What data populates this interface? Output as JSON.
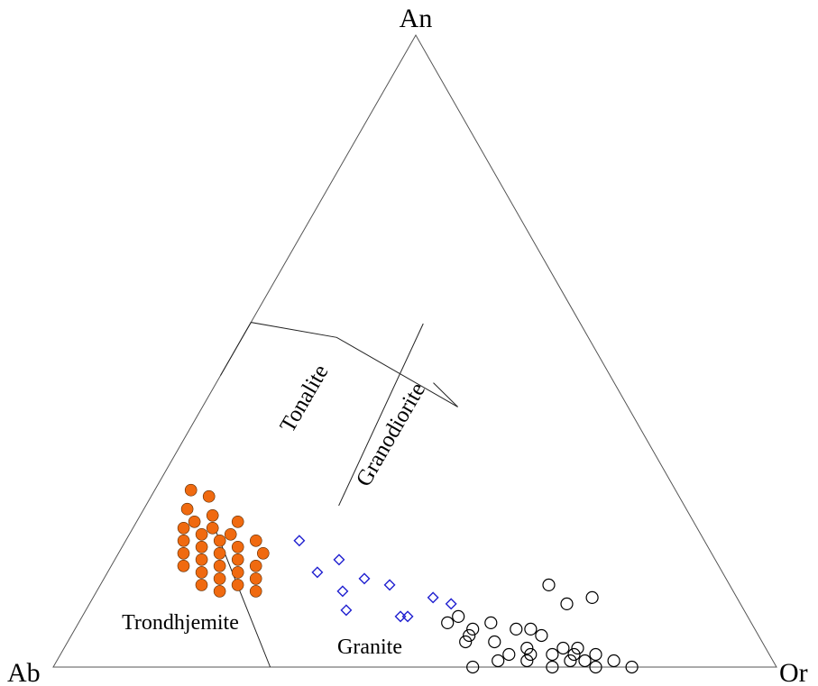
{
  "chart_data": {
    "type": "scatter",
    "subtype": "ternary",
    "title": "",
    "vertices": {
      "top": "An",
      "left": "Ab",
      "right": "Or"
    },
    "field_labels": [
      "Tonalite",
      "Granodiorite",
      "Trondhjemite",
      "Granite"
    ],
    "grid": false,
    "legend": "none",
    "boundaries": [
      {
        "name": "trondhjemite-upper-boundary",
        "points": [
          [
            0.6,
            0.7,
            0.0
          ],
          [
            0.6,
            0.5,
            0.0
          ],
          [
            0.6,
            0.4,
            0.15
          ],
          [
            0.35,
            0.2,
            0.3
          ]
        ]
      },
      {
        "name": "tonalite-granodiorite-boundary",
        "points": [
          [
            0.5,
            0.2,
            0.22
          ],
          [
            0.23,
            0.43,
            0.24
          ]
        ]
      },
      {
        "name": "granodiorite-granite-boundary",
        "points": [
          [
            0.35,
            0.2,
            0.3
          ],
          [
            0.45,
            0.25,
            0.3
          ]
        ]
      },
      {
        "name": "trondhjemite-granite-boundary",
        "points": [
          [
            0.2,
            0.6,
            0.1
          ],
          [
            0.0,
            0.7,
            0.3
          ]
        ]
      }
    ],
    "series": [
      {
        "marker": "filled-circle",
        "color": "#f06a10",
        "points": [
          [
            0.28,
            0.67,
            0.05
          ],
          [
            0.27,
            0.65,
            0.08
          ],
          [
            0.25,
            0.69,
            0.06
          ],
          [
            0.24,
            0.66,
            0.1
          ],
          [
            0.23,
            0.69,
            0.08
          ],
          [
            0.23,
            0.63,
            0.14
          ],
          [
            0.22,
            0.67,
            0.11
          ],
          [
            0.22,
            0.71,
            0.07
          ],
          [
            0.21,
            0.69,
            0.1
          ],
          [
            0.21,
            0.65,
            0.14
          ],
          [
            0.2,
            0.72,
            0.08
          ],
          [
            0.2,
            0.67,
            0.13
          ],
          [
            0.2,
            0.62,
            0.18
          ],
          [
            0.19,
            0.7,
            0.11
          ],
          [
            0.19,
            0.65,
            0.16
          ],
          [
            0.18,
            0.73,
            0.09
          ],
          [
            0.18,
            0.68,
            0.14
          ],
          [
            0.18,
            0.62,
            0.2
          ],
          [
            0.17,
            0.71,
            0.12
          ],
          [
            0.17,
            0.66,
            0.17
          ],
          [
            0.16,
            0.74,
            0.1
          ],
          [
            0.16,
            0.69,
            0.15
          ],
          [
            0.16,
            0.64,
            0.2
          ],
          [
            0.15,
            0.72,
            0.13
          ],
          [
            0.15,
            0.67,
            0.18
          ],
          [
            0.14,
            0.7,
            0.16
          ],
          [
            0.14,
            0.65,
            0.21
          ],
          [
            0.13,
            0.68,
            0.19
          ],
          [
            0.13,
            0.73,
            0.14
          ],
          [
            0.12,
            0.66,
            0.22
          ],
          [
            0.12,
            0.71,
            0.17
          ]
        ]
      },
      {
        "marker": "open-diamond",
        "color": "#2020d0",
        "points": [
          [
            0.2,
            0.56,
            0.24
          ],
          [
            0.17,
            0.52,
            0.31
          ],
          [
            0.15,
            0.56,
            0.29
          ],
          [
            0.14,
            0.5,
            0.36
          ],
          [
            0.13,
            0.47,
            0.4
          ],
          [
            0.12,
            0.54,
            0.34
          ],
          [
            0.11,
            0.42,
            0.47
          ],
          [
            0.1,
            0.4,
            0.5
          ],
          [
            0.09,
            0.55,
            0.36
          ],
          [
            0.08,
            0.47,
            0.45
          ],
          [
            0.08,
            0.48,
            0.44
          ]
        ]
      },
      {
        "marker": "open-circle",
        "color": "#000000",
        "points": [
          [
            0.13,
            0.25,
            0.62
          ],
          [
            0.11,
            0.2,
            0.69
          ],
          [
            0.1,
            0.24,
            0.66
          ],
          [
            0.08,
            0.4,
            0.52
          ],
          [
            0.07,
            0.42,
            0.51
          ],
          [
            0.07,
            0.36,
            0.57
          ],
          [
            0.06,
            0.39,
            0.55
          ],
          [
            0.06,
            0.31,
            0.63
          ],
          [
            0.06,
            0.33,
            0.61
          ],
          [
            0.05,
            0.4,
            0.55
          ],
          [
            0.05,
            0.3,
            0.65
          ],
          [
            0.04,
            0.37,
            0.59
          ],
          [
            0.04,
            0.41,
            0.55
          ],
          [
            0.03,
            0.33,
            0.64
          ],
          [
            0.03,
            0.26,
            0.71
          ],
          [
            0.03,
            0.28,
            0.69
          ],
          [
            0.02,
            0.33,
            0.65
          ],
          [
            0.02,
            0.24,
            0.74
          ],
          [
            0.02,
            0.3,
            0.68
          ],
          [
            0.01,
            0.38,
            0.61
          ],
          [
            0.01,
            0.34,
            0.65
          ],
          [
            0.01,
            0.28,
            0.71
          ],
          [
            0.01,
            0.26,
            0.73
          ],
          [
            0.0,
            0.42,
            0.58
          ],
          [
            0.0,
            0.31,
            0.69
          ],
          [
            0.0,
            0.25,
            0.75
          ],
          [
            0.0,
            0.2,
            0.8
          ],
          [
            0.01,
            0.22,
            0.77
          ],
          [
            0.02,
            0.36,
            0.62
          ],
          [
            0.02,
            0.27,
            0.71
          ]
        ]
      }
    ]
  }
}
